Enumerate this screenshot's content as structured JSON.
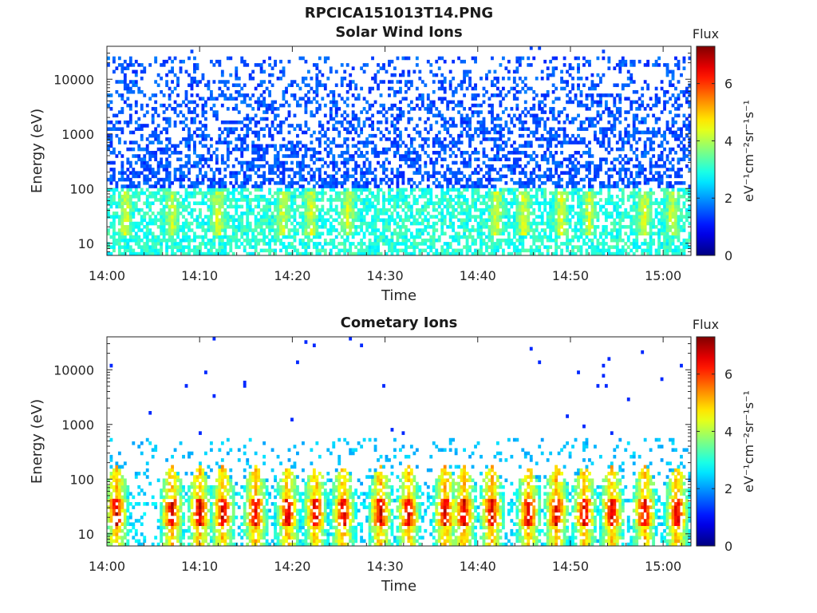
{
  "figure": {
    "title": "RPCICA151013T14.PNG"
  },
  "chart_data": [
    {
      "type": "heatmap",
      "title": "Solar Wind Ions",
      "xlabel": "Time",
      "ylabel": "Energy (eV)",
      "x_range": [
        "14:00",
        "15:03"
      ],
      "x_ticks": [
        "14:00",
        "14:10",
        "14:20",
        "14:30",
        "14:40",
        "14:50",
        "15:00"
      ],
      "y_scale": "log",
      "y_range": [
        6,
        40000
      ],
      "y_ticks": [
        10,
        100,
        1000,
        10000
      ],
      "y_tick_labels": [
        "10",
        "100",
        "1000",
        "10000"
      ],
      "colorbar": {
        "label": "Flux",
        "units": "eV⁻¹cm⁻²sr⁻¹s⁻¹",
        "range": [
          0,
          7.3
        ],
        "ticks": [
          0,
          2,
          4,
          6
        ],
        "tick_labels": [
          "0",
          "2",
          "4",
          "6"
        ],
        "colormap": "jet"
      },
      "description_values": {
        "low_energy_band_eV": [
          6,
          100
        ],
        "low_energy_flux_typical": 3.0,
        "high_energy_band_eV": [
          100,
          30000
        ],
        "high_energy_flux_typical": 1.5,
        "bursts_time_min": [
          2,
          7,
          12,
          19,
          22,
          26,
          42,
          45,
          49,
          52,
          58,
          61
        ],
        "burst_peak_flux": 4.6
      }
    },
    {
      "type": "heatmap",
      "title": "Cometary Ions",
      "xlabel": "Time",
      "ylabel": "Energy (eV)",
      "x_range": [
        "14:00",
        "15:03"
      ],
      "x_ticks": [
        "14:00",
        "14:10",
        "14:20",
        "14:30",
        "14:40",
        "14:50",
        "15:00"
      ],
      "y_scale": "log",
      "y_range": [
        6,
        40000
      ],
      "y_ticks": [
        10,
        100,
        1000,
        10000
      ],
      "y_tick_labels": [
        "10",
        "100",
        "1000",
        "10000"
      ],
      "colorbar": {
        "label": "Flux",
        "units": "eV⁻¹cm⁻²sr⁻¹s⁻¹",
        "range": [
          0,
          7.3
        ],
        "ticks": [
          0,
          2,
          4,
          6
        ],
        "tick_labels": [
          "0",
          "2",
          "4",
          "6"
        ],
        "colormap": "jet"
      },
      "description_values": {
        "bursts_time_min": [
          1,
          7,
          10,
          12.5,
          16,
          19.5,
          22.5,
          25.5,
          29.5,
          32.5,
          36.5,
          38.5,
          41.5,
          45.5,
          48.5,
          51.5,
          54.5,
          58,
          61.5
        ],
        "burst_core_energy_eV": [
          15,
          45
        ],
        "burst_peak_flux": 6.8,
        "background_flux": 2.5
      }
    }
  ]
}
